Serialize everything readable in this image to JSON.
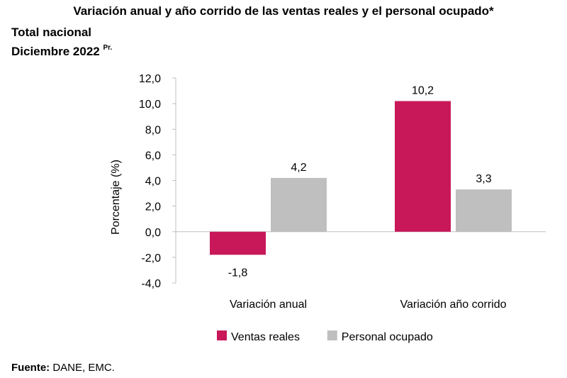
{
  "chart_data": {
    "type": "bar",
    "title": "Variación anual y año corrido de las ventas reales y el personal ocupado*",
    "subtitle_line1": "Total nacional",
    "subtitle_line2": "Diciembre 2022",
    "subtitle_superscript": "Pr.",
    "categories": [
      "Variación anual",
      "Variación año corrido"
    ],
    "series": [
      {
        "name": "Ventas reales",
        "color": "#c8185a",
        "values": [
          -1.8,
          10.2
        ],
        "labels": [
          "-1,8",
          "10,2"
        ]
      },
      {
        "name": "Personal ocupado",
        "color": "#bfbfbf",
        "values": [
          4.2,
          3.3
        ],
        "labels": [
          "4,2",
          "3,3"
        ]
      }
    ],
    "ylabel": "Porcentaje (%)",
    "xlabel": "",
    "ylim": [
      -4,
      12
    ],
    "yticks": [
      12,
      10,
      8,
      6,
      4,
      2,
      0,
      -2,
      -4
    ],
    "ytick_labels": [
      "12,0",
      "10,0",
      "8,0",
      "6,0",
      "4,0",
      "2,0",
      "0,0",
      "-2,0",
      "-4,0"
    ],
    "legend_position": "bottom-center",
    "grid": false
  },
  "source": {
    "label": "Fuente:",
    "text": " DANE, EMC."
  }
}
